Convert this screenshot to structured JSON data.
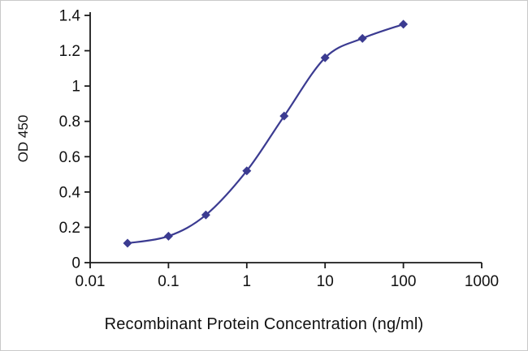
{
  "chart_data": {
    "type": "line",
    "title": "",
    "xlabel": "Recombinant Protein Concentration (ng/ml)",
    "ylabel": "OD 450",
    "x_scale": "log",
    "xlim": [
      0.01,
      1000
    ],
    "ylim": [
      0,
      1.4
    ],
    "grid": "off",
    "legend": "none",
    "x_ticks": [
      {
        "value": 0.01,
        "label": "0.01"
      },
      {
        "value": 0.1,
        "label": "0.1"
      },
      {
        "value": 1,
        "label": "1"
      },
      {
        "value": 10,
        "label": "10"
      },
      {
        "value": 100,
        "label": "100"
      },
      {
        "value": 1000,
        "label": "1000"
      }
    ],
    "y_ticks": [
      {
        "value": 0,
        "label": "0"
      },
      {
        "value": 0.2,
        "label": "0.2"
      },
      {
        "value": 0.4,
        "label": "0.4"
      },
      {
        "value": 0.6,
        "label": "0.6"
      },
      {
        "value": 0.8,
        "label": "0.8"
      },
      {
        "value": 1,
        "label": "1"
      },
      {
        "value": 1.2,
        "label": "1.2"
      },
      {
        "value": 1.4,
        "label": "1.4"
      }
    ],
    "series": [
      {
        "name": "OD 450",
        "marker": "diamond",
        "color": "#3b3b91",
        "x": [
          0.03,
          0.1,
          0.3,
          1,
          3,
          10,
          30,
          100
        ],
        "y": [
          0.11,
          0.15,
          0.27,
          0.52,
          0.83,
          1.16,
          1.27,
          1.35
        ]
      }
    ]
  },
  "colors": {
    "axis": "#1a1a1a",
    "tick_text": "#111111",
    "background": "#ffffff",
    "frame_border": "#c9c9c9"
  }
}
